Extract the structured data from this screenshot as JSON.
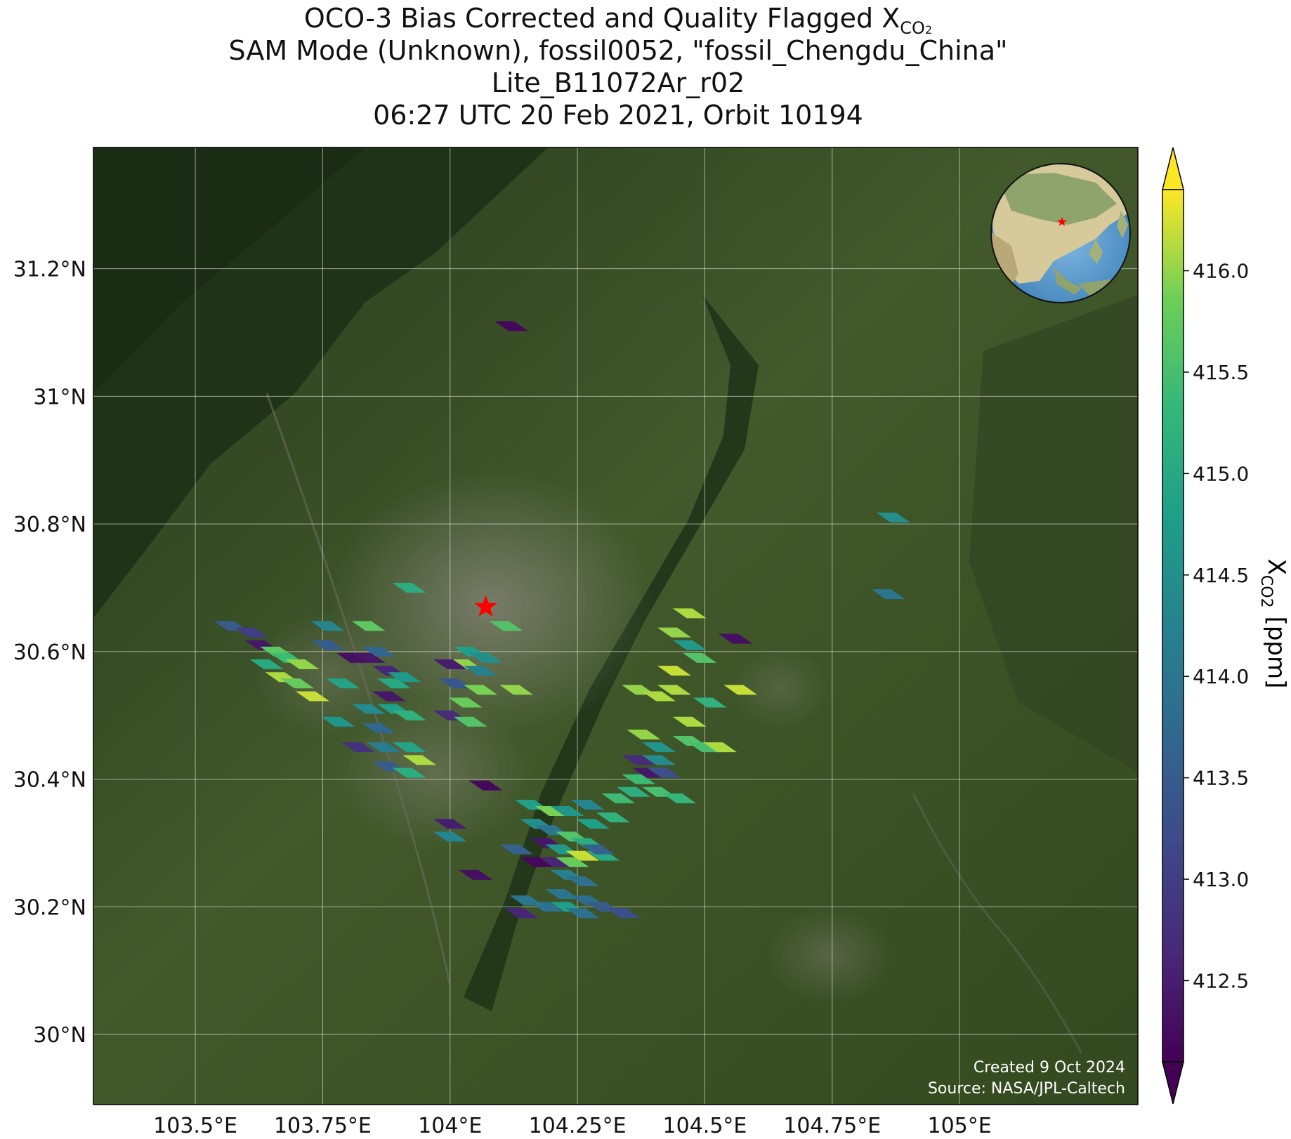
{
  "title": {
    "line1_text": "OCO-3 Bias Corrected and Quality Flagged X",
    "line1_sub": "CO",
    "line1_sub2": "2",
    "line2": "SAM Mode (Unknown), fossil0052, \"fossil_Chengdu_China\"",
    "line3": "Lite_B11072Ar_r02",
    "line4": "06:27 UTC 20 Feb 2021, Orbit 10194"
  },
  "map": {
    "lon_range": [
      103.3,
      105.35
    ],
    "lat_range": [
      29.89,
      31.39
    ],
    "lon_ticks": [
      103.5,
      103.75,
      104.0,
      104.25,
      104.5,
      104.75,
      105.0
    ],
    "lon_tick_labels": [
      "103.5°E",
      "103.75°E",
      "104°E",
      "104.25°E",
      "104.5°E",
      "104.75°E",
      "105°E"
    ],
    "lat_ticks": [
      30.0,
      30.2,
      30.4,
      30.6,
      30.8,
      31.0,
      31.2
    ],
    "lat_tick_labels": [
      "30°N",
      "30.2°N",
      "30.4°N",
      "30.6°N",
      "30.8°N",
      "31°N",
      "31.2°N"
    ],
    "target": {
      "name": "fossil_Chengdu_China",
      "lon": 104.07,
      "lat": 30.67,
      "marker_color": "#ff0000"
    },
    "inset_globe": "globe-locator",
    "credit_line1": "Created 9 Oct 2024",
    "credit_line2": "Source: NASA/JPL-Caltech",
    "colors": {
      "land": "#3c5427",
      "mountain": "#21351a",
      "urban": "#7d7a70",
      "grid": "#ffffff"
    }
  },
  "colorbar": {
    "label_main": "X",
    "label_sub": "CO2",
    "label_unit": "[ppm]",
    "vmin": 412.1,
    "vmax": 416.4,
    "ticks": [
      412.5,
      413.0,
      413.5,
      414.0,
      414.5,
      415.0,
      415.5,
      416.0
    ],
    "tick_labels": [
      "412.5",
      "413.0",
      "413.5",
      "414.0",
      "414.5",
      "415.0",
      "415.5",
      "416.0"
    ],
    "colormap": "viridis",
    "extend": "both"
  },
  "soundings": [
    {
      "lon": 103.57,
      "lat": 30.64,
      "v": 413.5
    },
    {
      "lon": 103.61,
      "lat": 30.63,
      "v": 413.0
    },
    {
      "lon": 103.63,
      "lat": 30.61,
      "v": 412.4
    },
    {
      "lon": 103.66,
      "lat": 30.6,
      "v": 415.7
    },
    {
      "lon": 103.68,
      "lat": 30.59,
      "v": 415.4
    },
    {
      "lon": 103.71,
      "lat": 30.58,
      "v": 416.0
    },
    {
      "lon": 103.67,
      "lat": 30.56,
      "v": 416.1
    },
    {
      "lon": 103.7,
      "lat": 30.55,
      "v": 415.8
    },
    {
      "lon": 103.73,
      "lat": 30.53,
      "v": 416.2
    },
    {
      "lon": 103.64,
      "lat": 30.58,
      "v": 415.0
    },
    {
      "lon": 103.76,
      "lat": 30.64,
      "v": 414.3
    },
    {
      "lon": 103.84,
      "lat": 30.64,
      "v": 415.7
    },
    {
      "lon": 103.76,
      "lat": 30.61,
      "v": 413.5
    },
    {
      "lon": 103.81,
      "lat": 30.59,
      "v": 412.3
    },
    {
      "lon": 103.84,
      "lat": 30.59,
      "v": 412.4
    },
    {
      "lon": 103.86,
      "lat": 30.6,
      "v": 413.7
    },
    {
      "lon": 103.88,
      "lat": 30.57,
      "v": 412.6
    },
    {
      "lon": 103.89,
      "lat": 30.55,
      "v": 415.0
    },
    {
      "lon": 103.79,
      "lat": 30.55,
      "v": 414.9
    },
    {
      "lon": 103.91,
      "lat": 30.56,
      "v": 414.7
    },
    {
      "lon": 103.88,
      "lat": 30.53,
      "v": 412.4
    },
    {
      "lon": 103.84,
      "lat": 30.51,
      "v": 414.4
    },
    {
      "lon": 103.89,
      "lat": 30.51,
      "v": 414.8
    },
    {
      "lon": 103.92,
      "lat": 30.5,
      "v": 415.2
    },
    {
      "lon": 103.92,
      "lat": 30.7,
      "v": 415.1
    },
    {
      "lon": 103.78,
      "lat": 30.49,
      "v": 414.6
    },
    {
      "lon": 103.86,
      "lat": 30.48,
      "v": 413.7
    },
    {
      "lon": 103.82,
      "lat": 30.45,
      "v": 412.8
    },
    {
      "lon": 103.87,
      "lat": 30.45,
      "v": 414.1
    },
    {
      "lon": 103.92,
      "lat": 30.45,
      "v": 414.9
    },
    {
      "lon": 103.94,
      "lat": 30.43,
      "v": 416.1
    },
    {
      "lon": 103.88,
      "lat": 30.42,
      "v": 413.5
    },
    {
      "lon": 103.92,
      "lat": 30.41,
      "v": 415.1
    },
    {
      "lon": 104.04,
      "lat": 30.6,
      "v": 414.8
    },
    {
      "lon": 104.07,
      "lat": 30.59,
      "v": 414.5
    },
    {
      "lon": 104.03,
      "lat": 30.58,
      "v": 416.0
    },
    {
      "lon": 104.06,
      "lat": 30.57,
      "v": 414.2
    },
    {
      "lon": 104.0,
      "lat": 30.58,
      "v": 412.5
    },
    {
      "lon": 104.01,
      "lat": 30.55,
      "v": 413.4
    },
    {
      "lon": 104.06,
      "lat": 30.54,
      "v": 415.9
    },
    {
      "lon": 104.03,
      "lat": 30.52,
      "v": 415.8
    },
    {
      "lon": 104.11,
      "lat": 30.64,
      "v": 415.6
    },
    {
      "lon": 104.13,
      "lat": 30.54,
      "v": 416.0
    },
    {
      "lon": 104.0,
      "lat": 30.5,
      "v": 412.7
    },
    {
      "lon": 104.04,
      "lat": 30.49,
      "v": 415.6
    },
    {
      "lon": 104.07,
      "lat": 30.39,
      "v": 412.2
    },
    {
      "lon": 104.0,
      "lat": 30.33,
      "v": 412.5
    },
    {
      "lon": 104.0,
      "lat": 30.31,
      "v": 414.3
    },
    {
      "lon": 104.16,
      "lat": 30.36,
      "v": 414.8
    },
    {
      "lon": 104.2,
      "lat": 30.35,
      "v": 415.9
    },
    {
      "lon": 104.23,
      "lat": 30.35,
      "v": 414.6
    },
    {
      "lon": 104.27,
      "lat": 30.36,
      "v": 414.3
    },
    {
      "lon": 104.33,
      "lat": 30.37,
      "v": 415.4
    },
    {
      "lon": 104.36,
      "lat": 30.38,
      "v": 415.1
    },
    {
      "lon": 104.32,
      "lat": 30.34,
      "v": 415.2
    },
    {
      "lon": 104.28,
      "lat": 30.33,
      "v": 414.8
    },
    {
      "lon": 104.17,
      "lat": 30.33,
      "v": 414.5
    },
    {
      "lon": 104.2,
      "lat": 30.32,
      "v": 414.0
    },
    {
      "lon": 104.24,
      "lat": 30.31,
      "v": 415.6
    },
    {
      "lon": 104.27,
      "lat": 30.3,
      "v": 415.1
    },
    {
      "lon": 104.19,
      "lat": 30.3,
      "v": 412.4
    },
    {
      "lon": 104.22,
      "lat": 30.29,
      "v": 414.7
    },
    {
      "lon": 104.26,
      "lat": 30.28,
      "v": 416.2
    },
    {
      "lon": 104.3,
      "lat": 30.28,
      "v": 415.0
    },
    {
      "lon": 104.13,
      "lat": 30.29,
      "v": 413.6
    },
    {
      "lon": 104.17,
      "lat": 30.27,
      "v": 412.2
    },
    {
      "lon": 104.21,
      "lat": 30.27,
      "v": 412.6
    },
    {
      "lon": 104.24,
      "lat": 30.27,
      "v": 415.8
    },
    {
      "lon": 104.29,
      "lat": 30.29,
      "v": 413.6
    },
    {
      "lon": 104.23,
      "lat": 30.25,
      "v": 414.2
    },
    {
      "lon": 104.26,
      "lat": 30.24,
      "v": 413.9
    },
    {
      "lon": 104.22,
      "lat": 30.22,
      "v": 414.0
    },
    {
      "lon": 104.27,
      "lat": 30.21,
      "v": 413.8
    },
    {
      "lon": 104.3,
      "lat": 30.2,
      "v": 413.5
    },
    {
      "lon": 104.34,
      "lat": 30.19,
      "v": 413.3
    },
    {
      "lon": 104.19,
      "lat": 30.2,
      "v": 413.9
    },
    {
      "lon": 104.23,
      "lat": 30.2,
      "v": 414.8
    },
    {
      "lon": 104.15,
      "lat": 30.21,
      "v": 414.0
    },
    {
      "lon": 104.14,
      "lat": 30.19,
      "v": 412.6
    },
    {
      "lon": 104.26,
      "lat": 30.19,
      "v": 413.9
    },
    {
      "lon": 104.05,
      "lat": 30.25,
      "v": 412.3
    },
    {
      "lon": 104.38,
      "lat": 30.47,
      "v": 416.0
    },
    {
      "lon": 104.41,
      "lat": 30.45,
      "v": 414.6
    },
    {
      "lon": 104.37,
      "lat": 30.43,
      "v": 412.7
    },
    {
      "lon": 104.41,
      "lat": 30.43,
      "v": 414.4
    },
    {
      "lon": 104.39,
      "lat": 30.41,
      "v": 412.4
    },
    {
      "lon": 104.37,
      "lat": 30.4,
      "v": 415.4
    },
    {
      "lon": 104.42,
      "lat": 30.41,
      "v": 413.3
    },
    {
      "lon": 104.41,
      "lat": 30.38,
      "v": 415.5
    },
    {
      "lon": 104.45,
      "lat": 30.37,
      "v": 415.3
    },
    {
      "lon": 104.37,
      "lat": 30.54,
      "v": 416.0
    },
    {
      "lon": 104.41,
      "lat": 30.53,
      "v": 416.1
    },
    {
      "lon": 104.44,
      "lat": 30.54,
      "v": 416.1
    },
    {
      "lon": 104.44,
      "lat": 30.63,
      "v": 416.0
    },
    {
      "lon": 104.47,
      "lat": 30.66,
      "v": 416.1
    },
    {
      "lon": 104.47,
      "lat": 30.61,
      "v": 414.7
    },
    {
      "lon": 104.49,
      "lat": 30.59,
      "v": 415.6
    },
    {
      "lon": 104.44,
      "lat": 30.57,
      "v": 416.2
    },
    {
      "lon": 104.47,
      "lat": 30.49,
      "v": 416.1
    },
    {
      "lon": 104.51,
      "lat": 30.52,
      "v": 415.2
    },
    {
      "lon": 104.47,
      "lat": 30.46,
      "v": 415.6
    },
    {
      "lon": 104.5,
      "lat": 30.45,
      "v": 415.5
    },
    {
      "lon": 104.53,
      "lat": 30.45,
      "v": 416.1
    },
    {
      "lon": 104.56,
      "lat": 30.62,
      "v": 412.3
    },
    {
      "lon": 104.57,
      "lat": 30.54,
      "v": 416.2
    },
    {
      "lon": 104.86,
      "lat": 30.69,
      "v": 414.0
    },
    {
      "lon": 104.87,
      "lat": 30.81,
      "v": 414.5
    },
    {
      "lon": 104.12,
      "lat": 31.11,
      "v": 412.2
    }
  ]
}
